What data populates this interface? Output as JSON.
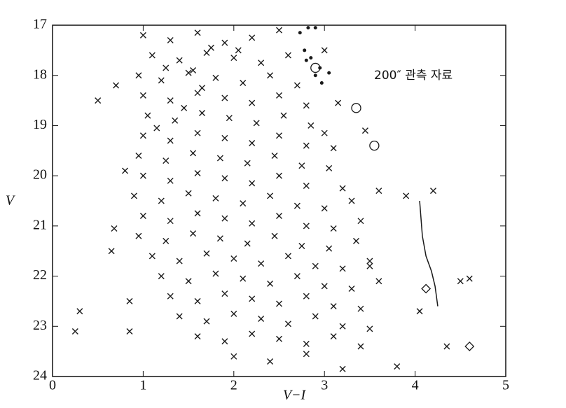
{
  "chart_data": {
    "type": "scatter",
    "xlabel": "V−I",
    "ylabel": "V",
    "annotation": "200″ 관측 자료",
    "xlim": [
      0,
      5
    ],
    "xticks": [
      0,
      1,
      2,
      3,
      4,
      5
    ],
    "ylim": [
      17,
      24
    ],
    "yticks": [
      17,
      18,
      19,
      20,
      21,
      22,
      23,
      24
    ],
    "invert_y": true,
    "series": [
      {
        "marker": "cross",
        "color": "#1a1a1a",
        "x": [
          1.0,
          1.3,
          1.6,
          1.9,
          2.2,
          2.5,
          1.75,
          2.05,
          1.1,
          1.4,
          1.7,
          2.0,
          2.3,
          2.6,
          1.25,
          1.55,
          0.95,
          1.2,
          1.5,
          1.8,
          2.1,
          2.4,
          2.7,
          1.65,
          1.0,
          1.3,
          1.6,
          1.9,
          2.2,
          2.5,
          2.8,
          1.45,
          1.05,
          1.35,
          1.65,
          1.95,
          2.25,
          2.55,
          2.85,
          1.15,
          1.0,
          1.3,
          1.6,
          1.9,
          2.2,
          2.5,
          2.8,
          3.1,
          0.95,
          1.25,
          1.55,
          1.85,
          2.15,
          2.45,
          2.75,
          3.05,
          1.0,
          1.3,
          1.6,
          1.9,
          2.2,
          2.5,
          2.8,
          3.2,
          0.9,
          1.2,
          1.5,
          1.8,
          2.1,
          2.4,
          2.7,
          3.0,
          3.3,
          1.0,
          1.3,
          1.6,
          1.9,
          2.2,
          2.5,
          2.8,
          3.1,
          3.4,
          0.95,
          1.25,
          1.55,
          1.85,
          2.15,
          2.45,
          2.75,
          3.05,
          3.35,
          1.1,
          1.4,
          1.7,
          2.0,
          2.3,
          2.6,
          2.9,
          3.2,
          3.5,
          1.2,
          1.5,
          1.8,
          2.1,
          2.4,
          2.7,
          3.0,
          3.3,
          3.6,
          1.3,
          1.6,
          1.9,
          2.2,
          2.5,
          2.8,
          3.1,
          3.4,
          1.4,
          1.7,
          2.0,
          2.3,
          2.6,
          2.9,
          3.2,
          3.5,
          1.6,
          1.9,
          2.2,
          2.5,
          2.8,
          3.1,
          3.4,
          2.0,
          2.4,
          2.8,
          3.2,
          0.25,
          0.3,
          0.5,
          0.65,
          0.7,
          0.68,
          0.85,
          0.85,
          0.8,
          3.9,
          4.2,
          4.05,
          4.5,
          4.6,
          4.35,
          3.8,
          3.6,
          3.45,
          3.0,
          3.15,
          3.0,
          3.5
        ],
        "values": [
          17.2,
          17.3,
          17.15,
          17.35,
          17.25,
          17.1,
          17.45,
          17.5,
          17.6,
          17.7,
          17.55,
          17.65,
          17.75,
          17.6,
          17.85,
          17.9,
          18.0,
          18.1,
          17.95,
          18.05,
          18.15,
          18.0,
          18.2,
          18.25,
          18.4,
          18.5,
          18.35,
          18.45,
          18.55,
          18.4,
          18.6,
          18.65,
          18.8,
          18.9,
          18.75,
          18.85,
          18.95,
          18.8,
          19.0,
          19.05,
          19.2,
          19.3,
          19.15,
          19.25,
          19.35,
          19.2,
          19.4,
          19.45,
          19.6,
          19.7,
          19.55,
          19.65,
          19.75,
          19.6,
          19.8,
          19.85,
          20.0,
          20.1,
          19.95,
          20.05,
          20.15,
          20.0,
          20.2,
          20.25,
          20.4,
          20.5,
          20.35,
          20.45,
          20.55,
          20.4,
          20.6,
          20.65,
          20.5,
          20.8,
          20.9,
          20.75,
          20.85,
          20.95,
          20.8,
          21.0,
          21.05,
          20.9,
          21.2,
          21.3,
          21.15,
          21.25,
          21.35,
          21.2,
          21.4,
          21.45,
          21.3,
          21.6,
          21.7,
          21.55,
          21.65,
          21.75,
          21.6,
          21.8,
          21.85,
          21.7,
          22.0,
          22.1,
          21.95,
          22.05,
          22.15,
          22.0,
          22.2,
          22.25,
          22.1,
          22.4,
          22.5,
          22.35,
          22.45,
          22.55,
          22.4,
          22.6,
          22.65,
          22.8,
          22.9,
          22.75,
          22.85,
          22.95,
          22.8,
          23.0,
          23.05,
          23.2,
          23.3,
          23.15,
          23.25,
          23.35,
          23.2,
          23.4,
          23.6,
          23.7,
          23.55,
          23.85,
          23.1,
          22.7,
          18.5,
          21.5,
          18.2,
          21.05,
          22.5,
          23.1,
          19.9,
          20.4,
          20.3,
          22.7,
          22.1,
          22.05,
          23.4,
          23.8,
          20.3,
          19.1,
          19.15,
          18.55,
          17.5,
          21.8
        ]
      },
      {
        "marker": "dot",
        "color": "#1a1a1a",
        "x": [
          2.73,
          2.82,
          2.9,
          2.78,
          2.85,
          2.95,
          3.05,
          2.9,
          2.97,
          2.8
        ],
        "values": [
          17.15,
          17.05,
          17.05,
          17.5,
          17.65,
          17.85,
          17.95,
          18.0,
          18.15,
          17.7
        ]
      },
      {
        "marker": "circle",
        "color": "#1a1a1a",
        "x": [
          2.9,
          3.35,
          3.55
        ],
        "values": [
          17.85,
          18.65,
          19.4
        ]
      },
      {
        "marker": "diamond",
        "color": "#1a1a1a",
        "x": [
          4.12,
          4.6
        ],
        "values": [
          22.25,
          23.4
        ]
      },
      {
        "marker": "line",
        "color": "#1a1a1a",
        "x": [
          4.05,
          4.08,
          4.12,
          4.18,
          4.22,
          4.25
        ],
        "values": [
          20.5,
          21.2,
          21.6,
          21.9,
          22.2,
          22.6
        ]
      }
    ]
  }
}
